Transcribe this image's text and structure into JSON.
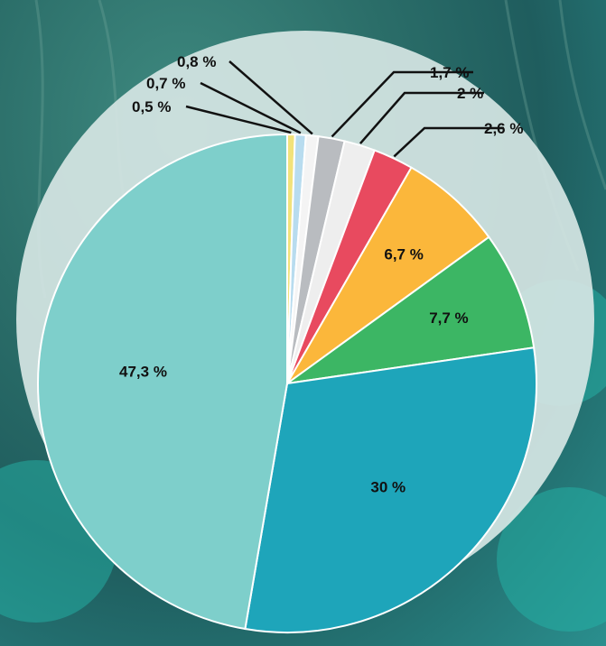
{
  "chart_data": {
    "type": "pie",
    "title": "",
    "slices": [
      {
        "value": 0.5,
        "label": "0,5 %",
        "color": "#f2e27a"
      },
      {
        "value": 0.7,
        "label": "0,7 %",
        "color": "#b8dcef"
      },
      {
        "value": 0.8,
        "label": "0,8 %",
        "color": "#f4f4f4"
      },
      {
        "value": 1.7,
        "label": "1,7 %",
        "color": "#b9bcc0"
      },
      {
        "value": 2.0,
        "label": "2 %",
        "color": "#eeeeee"
      },
      {
        "value": 2.6,
        "label": "2,6 %",
        "color": "#e84a5f"
      },
      {
        "value": 6.7,
        "label": "6,7 %",
        "color": "#fbb73b"
      },
      {
        "value": 7.7,
        "label": "7,7 %",
        "color": "#3cb664"
      },
      {
        "value": 30,
        "label": "30 %",
        "color": "#1ea5ba"
      },
      {
        "value": 47.3,
        "label": "47,3 %",
        "color": "#7ecfcb"
      }
    ],
    "colors": {
      "background_disc": "#d6e6e4",
      "slice_border": "#ffffff",
      "leader_line": "#111111"
    }
  }
}
